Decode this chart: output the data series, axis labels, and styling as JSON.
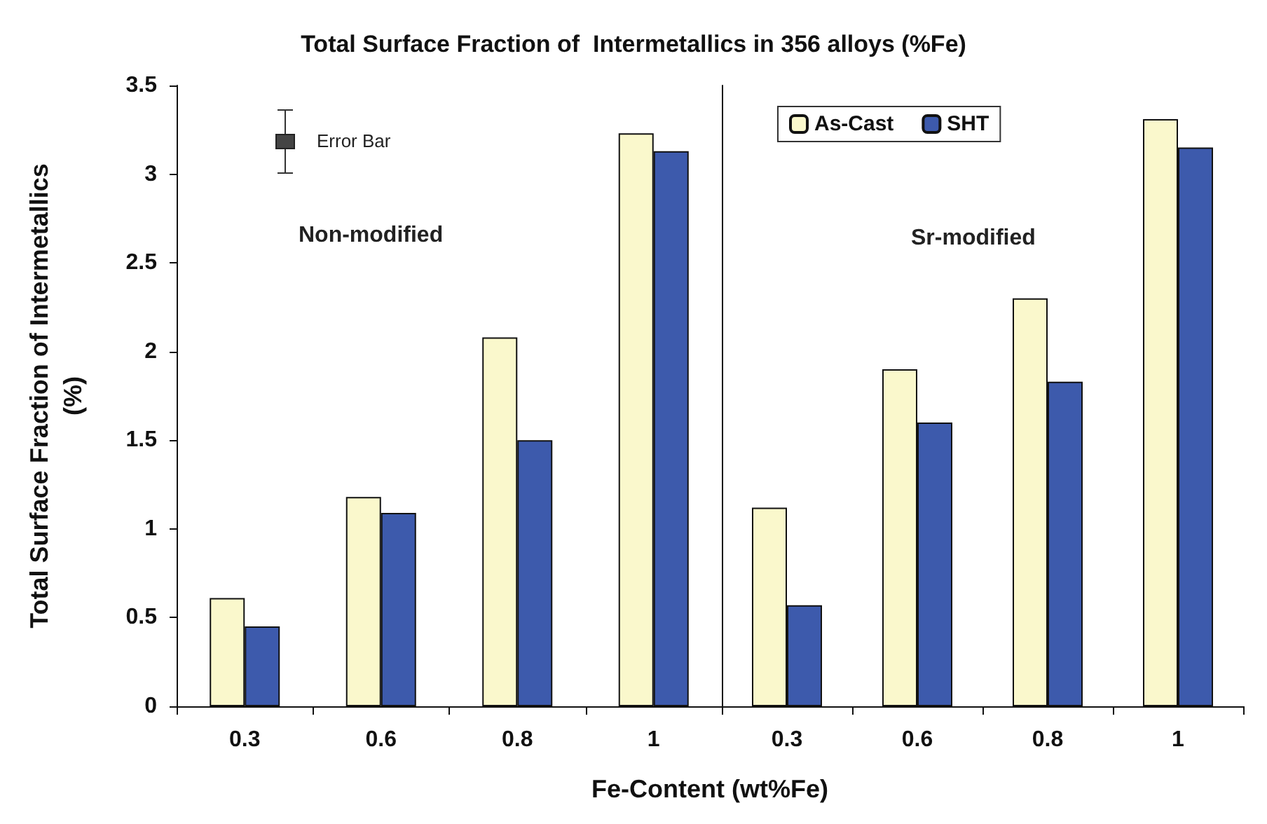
{
  "chart_data": [
    {
      "type": "bar",
      "title": "Total Surface Fraction of  Intermetallics in 356 alloys (%Fe)",
      "xlabel": "Fe-Content (wt%Fe)",
      "ylabel": "Total Surface Fraction of Intermetallics\n(%)",
      "categories": [
        "0.3",
        "0.6",
        "0.8",
        "1"
      ],
      "series": [
        {
          "color": "#faf8cc",
          "values": [
            0.61,
            1.18,
            2.08,
            3.23
          ]
        },
        {
          "color": "#3d5aac",
          "values": [
            0.45,
            1.09,
            1.5,
            3.13
          ]
        }
      ],
      "ylim": [
        0,
        3.5
      ],
      "yticks": [
        0,
        0.5,
        1,
        1.5,
        2,
        2.5,
        3,
        3.5
      ],
      "annotations": [
        "Error Bar",
        "Non-modified"
      ],
      "grid": false
    },
    {
      "type": "bar",
      "categories": [
        "0.3",
        "0.6",
        "0.8",
        "1"
      ],
      "series": [
        {
          "name": "As-Cast",
          "color": "#faf8cc",
          "values": [
            1.12,
            1.9,
            2.3,
            3.31
          ]
        },
        {
          "name": "SHT",
          "color": "#3d5aac",
          "values": [
            0.57,
            1.6,
            1.83,
            3.15
          ]
        }
      ],
      "ylim": [
        0,
        3.5
      ],
      "yticks": [
        0,
        0.5,
        1,
        1.5,
        2,
        2.5,
        3,
        3.5
      ],
      "annotations": [
        "Sr-modified"
      ],
      "grid": false,
      "legend": "top left",
      "tick_labels": "x"
    }
  ]
}
